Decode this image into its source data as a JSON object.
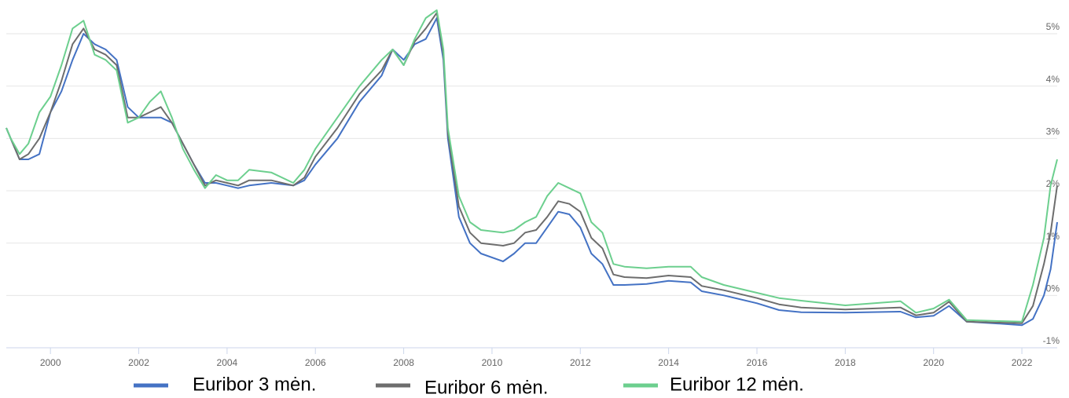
{
  "chart_data": {
    "type": "line",
    "x": [
      1999.0,
      1999.1,
      1999.3,
      1999.5,
      1999.75,
      2000.0,
      2000.25,
      2000.5,
      2000.75,
      2001.0,
      2001.25,
      2001.5,
      2001.75,
      2002.0,
      2002.25,
      2002.5,
      2002.75,
      2003.0,
      2003.25,
      2003.5,
      2003.75,
      2004.0,
      2004.25,
      2004.5,
      2005.0,
      2005.5,
      2005.75,
      2006.0,
      2006.5,
      2007.0,
      2007.5,
      2007.75,
      2008.0,
      2008.25,
      2008.5,
      2008.75,
      2008.9,
      2009.0,
      2009.25,
      2009.5,
      2009.75,
      2010.25,
      2010.5,
      2010.75,
      2011.0,
      2011.25,
      2011.5,
      2011.75,
      2012.0,
      2012.25,
      2012.5,
      2012.75,
      2013.0,
      2013.5,
      2014.0,
      2014.5,
      2014.75,
      2015.25,
      2016.0,
      2016.5,
      2017.0,
      2018.0,
      2019.25,
      2019.6,
      2020.0,
      2020.35,
      2020.75,
      2021.5,
      2022.0,
      2022.25,
      2022.5,
      2022.65,
      2022.8
    ],
    "series": [
      {
        "name": "Euribor 3 mėn.",
        "color": "#4472c4",
        "values": [
          3.2,
          3.0,
          2.6,
          2.6,
          2.7,
          3.5,
          3.9,
          4.5,
          5.0,
          4.8,
          4.7,
          4.5,
          3.6,
          3.4,
          3.4,
          3.4,
          3.3,
          2.9,
          2.5,
          2.15,
          2.15,
          2.1,
          2.05,
          2.1,
          2.15,
          2.1,
          2.2,
          2.5,
          3.0,
          3.7,
          4.2,
          4.7,
          4.5,
          4.8,
          4.9,
          5.3,
          4.5,
          3.0,
          1.5,
          1.0,
          0.8,
          0.65,
          0.8,
          1.0,
          1.0,
          1.3,
          1.6,
          1.55,
          1.3,
          0.8,
          0.6,
          0.2,
          0.2,
          0.22,
          0.28,
          0.25,
          0.08,
          0.0,
          -0.15,
          -0.28,
          -0.32,
          -0.33,
          -0.31,
          -0.42,
          -0.39,
          -0.2,
          -0.5,
          -0.54,
          -0.57,
          -0.45,
          0.0,
          0.5,
          1.4
        ]
      },
      {
        "name": "Euribor 6 mėn.",
        "color": "#6d6d6d",
        "values": [
          3.2,
          3.0,
          2.6,
          2.7,
          3.0,
          3.5,
          4.1,
          4.8,
          5.1,
          4.7,
          4.6,
          4.4,
          3.4,
          3.4,
          3.5,
          3.6,
          3.3,
          2.9,
          2.5,
          2.1,
          2.2,
          2.15,
          2.1,
          2.2,
          2.2,
          2.1,
          2.25,
          2.65,
          3.2,
          3.85,
          4.3,
          4.7,
          4.4,
          4.85,
          5.1,
          5.4,
          4.6,
          3.1,
          1.7,
          1.2,
          1.0,
          0.95,
          1.0,
          1.2,
          1.25,
          1.5,
          1.8,
          1.75,
          1.6,
          1.1,
          0.9,
          0.4,
          0.35,
          0.33,
          0.38,
          0.35,
          0.18,
          0.1,
          -0.05,
          -0.17,
          -0.23,
          -0.27,
          -0.23,
          -0.38,
          -0.33,
          -0.12,
          -0.5,
          -0.52,
          -0.53,
          -0.2,
          0.6,
          1.2,
          2.1
        ]
      },
      {
        "name": "Euribor 12 mėn.",
        "color": "#6ccf8e",
        "values": [
          3.2,
          3.0,
          2.7,
          2.9,
          3.5,
          3.8,
          4.4,
          5.1,
          5.25,
          4.6,
          4.5,
          4.3,
          3.3,
          3.4,
          3.7,
          3.9,
          3.4,
          2.8,
          2.4,
          2.05,
          2.3,
          2.2,
          2.2,
          2.4,
          2.35,
          2.15,
          2.4,
          2.8,
          3.4,
          4.0,
          4.5,
          4.7,
          4.4,
          4.9,
          5.3,
          5.45,
          4.7,
          3.2,
          1.9,
          1.4,
          1.25,
          1.2,
          1.25,
          1.4,
          1.5,
          1.9,
          2.15,
          2.05,
          1.95,
          1.4,
          1.2,
          0.6,
          0.55,
          0.52,
          0.55,
          0.55,
          0.35,
          0.2,
          0.05,
          -0.05,
          -0.1,
          -0.19,
          -0.11,
          -0.33,
          -0.25,
          -0.08,
          -0.47,
          -0.49,
          -0.5,
          0.2,
          1.1,
          2.1,
          2.6
        ]
      }
    ],
    "xlim": [
      1999.0,
      2022.8
    ],
    "xticks": [
      2000,
      2002,
      2004,
      2006,
      2008,
      2010,
      2012,
      2014,
      2016,
      2018,
      2020,
      2022
    ],
    "ylim": [
      -1,
      5.6
    ],
    "yticks": [
      {
        "value": -1,
        "label": "-1%"
      },
      {
        "value": 0,
        "label": "0%"
      },
      {
        "value": 1,
        "label": "1%"
      },
      {
        "value": 2,
        "label": "2%"
      },
      {
        "value": 3,
        "label": "3%"
      },
      {
        "value": 4,
        "label": "4%"
      },
      {
        "value": 5,
        "label": "5%"
      }
    ],
    "grid": true,
    "legend": "bottom"
  }
}
